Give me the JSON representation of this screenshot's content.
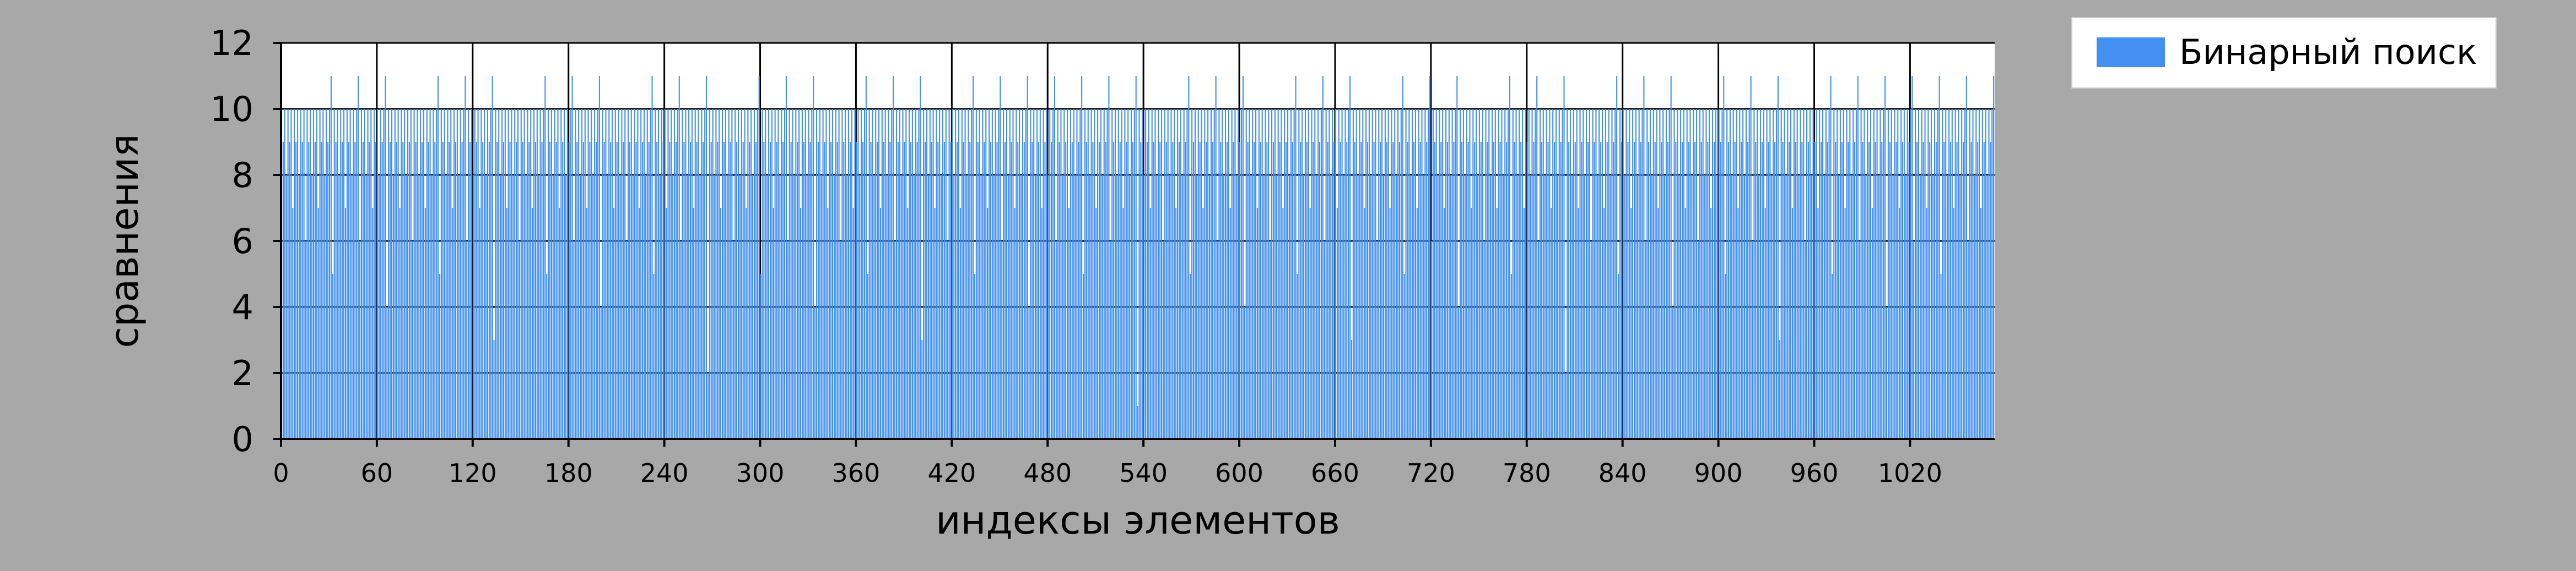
{
  "chart_data": {
    "type": "bar",
    "xlabel": "индексы элементов",
    "ylabel": "сравнения",
    "ylim": [
      0,
      12
    ],
    "xlim": [
      0,
      1073
    ],
    "x_ticks": [
      0,
      60,
      120,
      180,
      240,
      300,
      360,
      420,
      480,
      540,
      600,
      660,
      720,
      780,
      840,
      900,
      960,
      1020
    ],
    "y_ticks": [
      0,
      2,
      4,
      6,
      8,
      10,
      12
    ],
    "grid": true,
    "legend_position": "top-right",
    "series": [
      {
        "name": "Бинарный поиск",
        "color": "#4490f0",
        "n_elements": 1073,
        "values_rule": "comparisons of binary search for each index; max 11, min 1 (at index 536)"
      }
    ]
  }
}
